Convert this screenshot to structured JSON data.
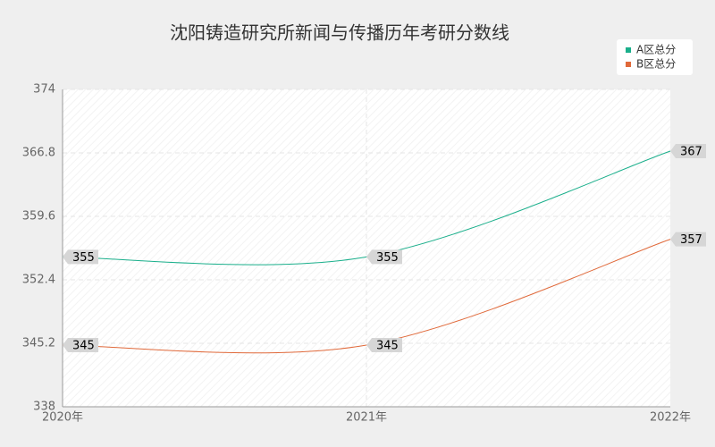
{
  "chart_data": {
    "type": "line",
    "title": "沈阳铸造研究所新闻与传播历年考研分数线",
    "categories": [
      "2020年",
      "2021年",
      "2022年"
    ],
    "series": [
      {
        "name": "A区总分",
        "color": "#1aaf8b",
        "values": [
          355,
          355,
          367
        ]
      },
      {
        "name": "B区总分",
        "color": "#e0693a",
        "values": [
          345,
          345,
          357
        ]
      }
    ],
    "ylim": [
      338,
      374
    ],
    "yticks": [
      338,
      345.2,
      352.4,
      359.6,
      366.8,
      374
    ],
    "grid": true,
    "legend": "top-right"
  }
}
